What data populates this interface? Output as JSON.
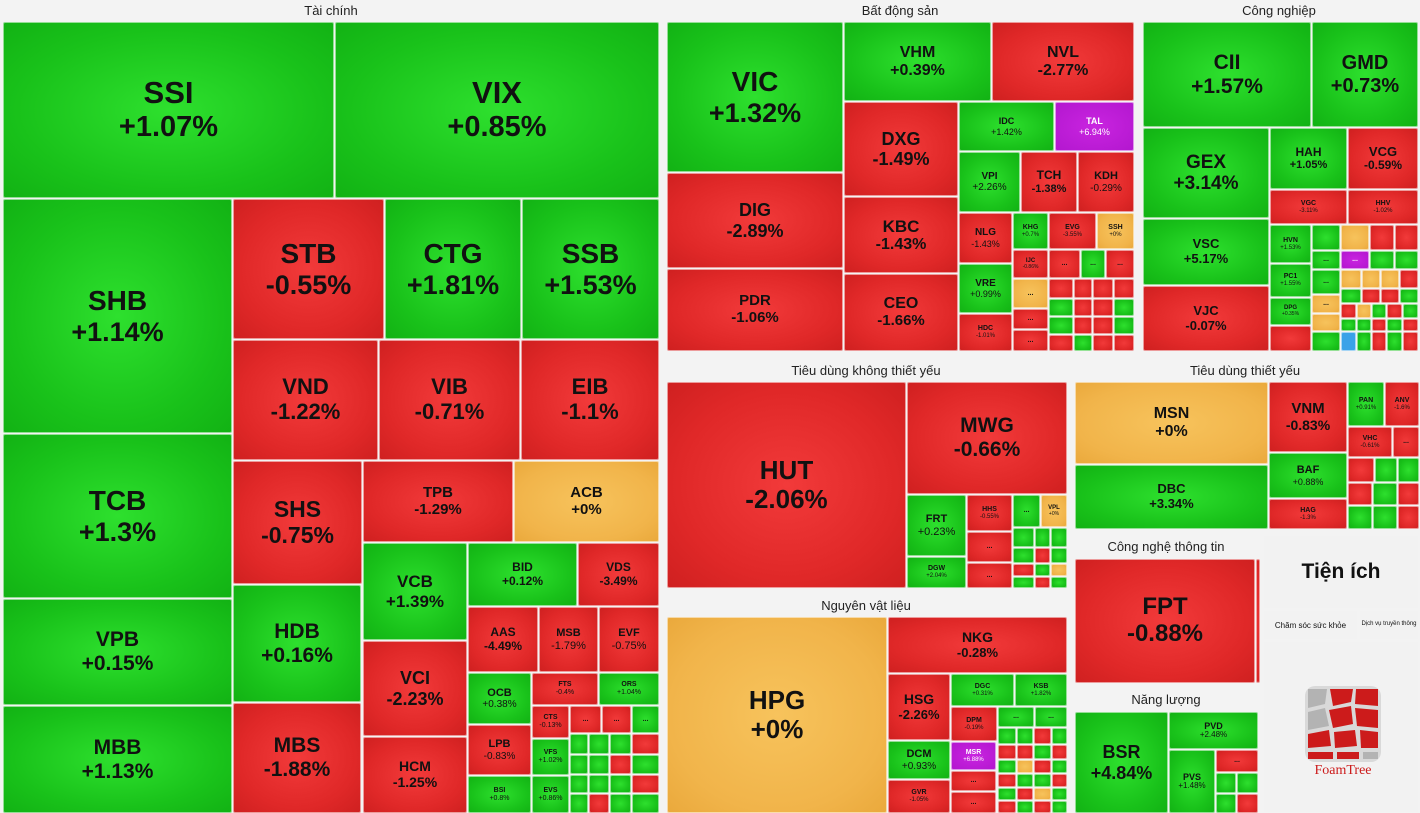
{
  "colors": {
    "up": "#19c21a",
    "down": "#e02828",
    "flat": "#f1b44a",
    "ceiling": "#b317cf",
    "floor": "#3aa2e8"
  },
  "sectors": {
    "tai_chinh": "Tài chính",
    "bat_dong_san": "Bất động sản",
    "cong_nghiep": "Công nghiệp",
    "tieu_dung_khong_thiet_yeu": "Tiêu dùng không thiết yếu",
    "tieu_dung_thiet_yeu": "Tiêu dùng thiết yếu",
    "nguyen_vat_lieu": "Nguyên vật liệu",
    "cong_nghe_thong_tin": "Công nghệ thông tin",
    "nang_luong": "Năng lượng",
    "tien_ich": "Tiện ích"
  },
  "tien_ich_panel": {
    "cham_soc_suc_khoe": "Chăm sóc sức khỏe",
    "dich_vu_truyen_thong": "Dịch vụ truyền thông"
  },
  "logo_text": "FoamTree",
  "chart_data": {
    "type": "treemap",
    "unit": "% change",
    "stocks": [
      {
        "sym": "SSI",
        "chg": "+1.07%",
        "sector": "Tài chính"
      },
      {
        "sym": "VIX",
        "chg": "+0.85%",
        "sector": "Tài chính"
      },
      {
        "sym": "SHB",
        "chg": "+1.14%",
        "sector": "Tài chính"
      },
      {
        "sym": "STB",
        "chg": "-0.55%",
        "sector": "Tài chính"
      },
      {
        "sym": "CTG",
        "chg": "+1.81%",
        "sector": "Tài chính"
      },
      {
        "sym": "SSB",
        "chg": "+1.53%",
        "sector": "Tài chính"
      },
      {
        "sym": "VND",
        "chg": "-1.22%",
        "sector": "Tài chính"
      },
      {
        "sym": "VIB",
        "chg": "-0.71%",
        "sector": "Tài chính"
      },
      {
        "sym": "EIB",
        "chg": "-1.1%",
        "sector": "Tài chính"
      },
      {
        "sym": "TCB",
        "chg": "+1.3%",
        "sector": "Tài chính"
      },
      {
        "sym": "SHS",
        "chg": "-0.75%",
        "sector": "Tài chính"
      },
      {
        "sym": "TPB",
        "chg": "-1.29%",
        "sector": "Tài chính"
      },
      {
        "sym": "ACB",
        "chg": "+0%",
        "sector": "Tài chính"
      },
      {
        "sym": "VPB",
        "chg": "+0.15%",
        "sector": "Tài chính"
      },
      {
        "sym": "HDB",
        "chg": "+0.16%",
        "sector": "Tài chính"
      },
      {
        "sym": "VCB",
        "chg": "+1.39%",
        "sector": "Tài chính"
      },
      {
        "sym": "BID",
        "chg": "+0.12%",
        "sector": "Tài chính"
      },
      {
        "sym": "VDS",
        "chg": "-3.49%",
        "sector": "Tài chính"
      },
      {
        "sym": "AAS",
        "chg": "-4.49%",
        "sector": "Tài chính"
      },
      {
        "sym": "MSB",
        "chg": "-1.79%",
        "sector": "Tài chính"
      },
      {
        "sym": "EVF",
        "chg": "-0.75%",
        "sector": "Tài chính"
      },
      {
        "sym": "VCI",
        "chg": "-2.23%",
        "sector": "Tài chính"
      },
      {
        "sym": "OCB",
        "chg": "+0.38%",
        "sector": "Tài chính"
      },
      {
        "sym": "FTS",
        "chg": "-0.4%",
        "sector": "Tài chính"
      },
      {
        "sym": "ORS",
        "chg": "+1.04%",
        "sector": "Tài chính"
      },
      {
        "sym": "MBB",
        "chg": "+1.13%",
        "sector": "Tài chính"
      },
      {
        "sym": "MBS",
        "chg": "-1.88%",
        "sector": "Tài chính"
      },
      {
        "sym": "CTS",
        "chg": "-0.13%",
        "sector": "Tài chính"
      },
      {
        "sym": "LPB",
        "chg": "-0.83%",
        "sector": "Tài chính"
      },
      {
        "sym": "VFS",
        "chg": "+1.02%",
        "sector": "Tài chính"
      },
      {
        "sym": "HCM",
        "chg": "-1.25%",
        "sector": "Tài chính"
      },
      {
        "sym": "BSI",
        "chg": "+0.8%",
        "sector": "Tài chính"
      },
      {
        "sym": "EVS",
        "chg": "+0.86%",
        "sector": "Tài chính"
      },
      {
        "sym": "VIC",
        "chg": "+1.32%",
        "sector": "Bất động sản"
      },
      {
        "sym": "VHM",
        "chg": "+0.39%",
        "sector": "Bất động sản"
      },
      {
        "sym": "NVL",
        "chg": "-2.77%",
        "sector": "Bất động sản"
      },
      {
        "sym": "DXG",
        "chg": "-1.49%",
        "sector": "Bất động sản"
      },
      {
        "sym": "IDC",
        "chg": "+1.42%",
        "sector": "Bất động sản"
      },
      {
        "sym": "TAL",
        "chg": "+6.94%",
        "sector": "Bất động sản"
      },
      {
        "sym": "DIG",
        "chg": "-2.89%",
        "sector": "Bất động sản"
      },
      {
        "sym": "VPI",
        "chg": "+2.26%",
        "sector": "Bất động sản"
      },
      {
        "sym": "TCH",
        "chg": "-1.38%",
        "sector": "Bất động sản"
      },
      {
        "sym": "KDH",
        "chg": "-0.29%",
        "sector": "Bất động sản"
      },
      {
        "sym": "KBC",
        "chg": "-1.43%",
        "sector": "Bất động sản"
      },
      {
        "sym": "NLG",
        "chg": "-1.43%",
        "sector": "Bất động sản"
      },
      {
        "sym": "KHG",
        "chg": "+0.7%",
        "sector": "Bất động sản"
      },
      {
        "sym": "EVG",
        "chg": "-3.55%",
        "sector": "Bất động sản"
      },
      {
        "sym": "SSH",
        "chg": "+0%",
        "sector": "Bất động sản"
      },
      {
        "sym": "PDR",
        "chg": "-1.06%",
        "sector": "Bất động sản"
      },
      {
        "sym": "VRE",
        "chg": "+0.99%",
        "sector": "Bất động sản"
      },
      {
        "sym": "IJC",
        "chg": "-0.86%",
        "sector": "Bất động sản"
      },
      {
        "sym": "CEO",
        "chg": "-1.66%",
        "sector": "Bất động sản"
      },
      {
        "sym": "HDC",
        "chg": "-1.01%",
        "sector": "Bất động sản"
      },
      {
        "sym": "CII",
        "chg": "+1.57%",
        "sector": "Công nghiệp"
      },
      {
        "sym": "GMD",
        "chg": "+0.73%",
        "sector": "Công nghiệp"
      },
      {
        "sym": "GEX",
        "chg": "+3.14%",
        "sector": "Công nghiệp"
      },
      {
        "sym": "HAH",
        "chg": "+1.05%",
        "sector": "Công nghiệp"
      },
      {
        "sym": "VCG",
        "chg": "-0.59%",
        "sector": "Công nghiệp"
      },
      {
        "sym": "VGC",
        "chg": "-3.11%",
        "sector": "Công nghiệp"
      },
      {
        "sym": "HHV",
        "chg": "-1.02%",
        "sector": "Công nghiệp"
      },
      {
        "sym": "VSC",
        "chg": "+5.17%",
        "sector": "Công nghiệp"
      },
      {
        "sym": "HVN",
        "chg": "+1.53%",
        "sector": "Công nghiệp"
      },
      {
        "sym": "PC1",
        "chg": "+1.55%",
        "sector": "Công nghiệp"
      },
      {
        "sym": "VJC",
        "chg": "-0.07%",
        "sector": "Công nghiệp"
      },
      {
        "sym": "DPG",
        "chg": "+0.35%",
        "sector": "Công nghiệp"
      },
      {
        "sym": "HUT",
        "chg": "-2.06%",
        "sector": "Tiêu dùng không thiết yếu"
      },
      {
        "sym": "MWG",
        "chg": "-0.66%",
        "sector": "Tiêu dùng không thiết yếu"
      },
      {
        "sym": "FRT",
        "chg": "+0.23%",
        "sector": "Tiêu dùng không thiết yếu"
      },
      {
        "sym": "HHS",
        "chg": "-0.55%",
        "sector": "Tiêu dùng không thiết yếu"
      },
      {
        "sym": "VPL",
        "chg": "+0%",
        "sector": "Tiêu dùng không thiết yếu"
      },
      {
        "sym": "DGW",
        "chg": "+2.04%",
        "sector": "Tiêu dùng không thiết yếu"
      },
      {
        "sym": "MSN",
        "chg": "+0%",
        "sector": "Tiêu dùng thiết yếu"
      },
      {
        "sym": "VNM",
        "chg": "-0.83%",
        "sector": "Tiêu dùng thiết yếu"
      },
      {
        "sym": "PAN",
        "chg": "+0.91%",
        "sector": "Tiêu dùng thiết yếu"
      },
      {
        "sym": "ANV",
        "chg": "-1.6%",
        "sector": "Tiêu dùng thiết yếu"
      },
      {
        "sym": "VHC",
        "chg": "-0.61%",
        "sector": "Tiêu dùng thiết yếu"
      },
      {
        "sym": "DBC",
        "chg": "+3.34%",
        "sector": "Tiêu dùng thiết yếu"
      },
      {
        "sym": "BAF",
        "chg": "+0.88%",
        "sector": "Tiêu dùng thiết yếu"
      },
      {
        "sym": "HAG",
        "chg": "-1.3%",
        "sector": "Tiêu dùng thiết yếu"
      },
      {
        "sym": "HPG",
        "chg": "+0%",
        "sector": "Nguyên vật liệu"
      },
      {
        "sym": "NKG",
        "chg": "-0.28%",
        "sector": "Nguyên vật liệu"
      },
      {
        "sym": "HSG",
        "chg": "-2.26%",
        "sector": "Nguyên vật liệu"
      },
      {
        "sym": "DGC",
        "chg": "+0.31%",
        "sector": "Nguyên vật liệu"
      },
      {
        "sym": "KSB",
        "chg": "+1.82%",
        "sector": "Nguyên vật liệu"
      },
      {
        "sym": "DPM",
        "chg": "-0.19%",
        "sector": "Nguyên vật liệu"
      },
      {
        "sym": "DCM",
        "chg": "+0.93%",
        "sector": "Nguyên vật liệu"
      },
      {
        "sym": "MSR",
        "chg": "+6.88%",
        "sector": "Nguyên vật liệu"
      },
      {
        "sym": "GVR",
        "chg": "-1.05%",
        "sector": "Nguyên vật liệu"
      },
      {
        "sym": "FPT",
        "chg": "-0.88%",
        "sector": "Công nghệ thông tin"
      },
      {
        "sym": "BSR",
        "chg": "+4.84%",
        "sector": "Năng lượng"
      },
      {
        "sym": "PVD",
        "chg": "+2.48%",
        "sector": "Năng lượng"
      },
      {
        "sym": "PVS",
        "chg": "+1.48%",
        "sector": "Năng lượng"
      }
    ],
    "more_marker": "..."
  }
}
